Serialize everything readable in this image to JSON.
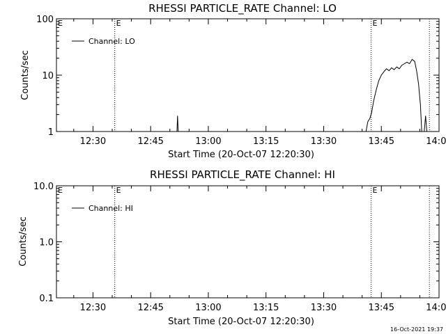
{
  "footer": {
    "timestamp": "16-Oct-2021 19:37"
  },
  "chart_data": [
    {
      "type": "line",
      "title": "RHESSI PARTICLE_RATE Channel: LO",
      "xlabel": "Start Time (20-Oct-07 12:20:30)",
      "ylabel": "Counts/sec",
      "yscale": "log",
      "ylim": [
        1,
        100
      ],
      "xlim": [
        "12:20:30",
        "14:00:00"
      ],
      "yticks": [
        "1",
        "10",
        "100"
      ],
      "xticks": [
        "12:30",
        "12:45",
        "13:00",
        "13:15",
        "13:30",
        "13:45",
        "14:00"
      ],
      "legend": {
        "position": "top-left",
        "entries": [
          "Channel: LO"
        ]
      },
      "markers": [
        {
          "time": "12:35:40",
          "style": "dotted",
          "label": "E"
        },
        {
          "time": "13:42:20",
          "style": "dotted",
          "label": "E"
        },
        {
          "time": "13:57:30",
          "style": "dotted",
          "label": ""
        }
      ],
      "series": [
        {
          "name": "Channel: LO",
          "segments": [
            [
              [
                "12:51:50",
                1
              ],
              [
                "12:52:00",
                1.9
              ],
              [
                "12:52:10",
                1
              ]
            ],
            [
              [
                "13:41:00",
                1
              ],
              [
                "13:41:30",
                1.5
              ],
              [
                "13:42:00",
                1.7
              ],
              [
                "13:42:30",
                2.2
              ],
              [
                "13:43:00",
                3.5
              ],
              [
                "13:43:40",
                5.5
              ],
              [
                "13:44:20",
                8
              ],
              [
                "13:45:00",
                10
              ],
              [
                "13:45:40",
                11.5
              ],
              [
                "13:46:20",
                13
              ],
              [
                "13:47:00",
                12
              ],
              [
                "13:47:40",
                13.5
              ],
              [
                "13:48:20",
                12.5
              ],
              [
                "13:49:00",
                14
              ],
              [
                "13:49:40",
                13
              ],
              [
                "13:50:20",
                15
              ],
              [
                "13:51:00",
                16
              ],
              [
                "13:51:40",
                17
              ],
              [
                "13:52:20",
                16
              ],
              [
                "13:53:00",
                19
              ],
              [
                "13:53:40",
                17.5
              ],
              [
                "13:54:10",
                12
              ],
              [
                "13:54:40",
                7
              ],
              [
                "13:55:10",
                3
              ],
              [
                "13:55:30",
                1
              ]
            ],
            [
              [
                "13:56:10",
                1
              ],
              [
                "13:56:30",
                1.9
              ],
              [
                "13:56:50",
                1
              ]
            ]
          ]
        }
      ]
    },
    {
      "type": "line",
      "title": "RHESSI PARTICLE_RATE Channel: HI",
      "xlabel": "Start Time (20-Oct-07 12:20:30)",
      "ylabel": "Counts/sec",
      "yscale": "log",
      "ylim": [
        0.1,
        10
      ],
      "xlim": [
        "12:20:30",
        "14:00:00"
      ],
      "yticks": [
        "0.1",
        "1.0",
        "10.0"
      ],
      "xticks": [
        "12:30",
        "12:45",
        "13:00",
        "13:15",
        "13:30",
        "13:45",
        "14:00"
      ],
      "legend": {
        "position": "top-left",
        "entries": [
          "Channel: HI"
        ]
      },
      "markers": [
        {
          "time": "12:35:40",
          "style": "dotted",
          "label": "E"
        },
        {
          "time": "13:42:20",
          "style": "dotted",
          "label": "E"
        },
        {
          "time": "13:57:30",
          "style": "dotted",
          "label": ""
        }
      ],
      "series": [
        {
          "name": "Channel: HI",
          "segments": []
        }
      ]
    }
  ]
}
